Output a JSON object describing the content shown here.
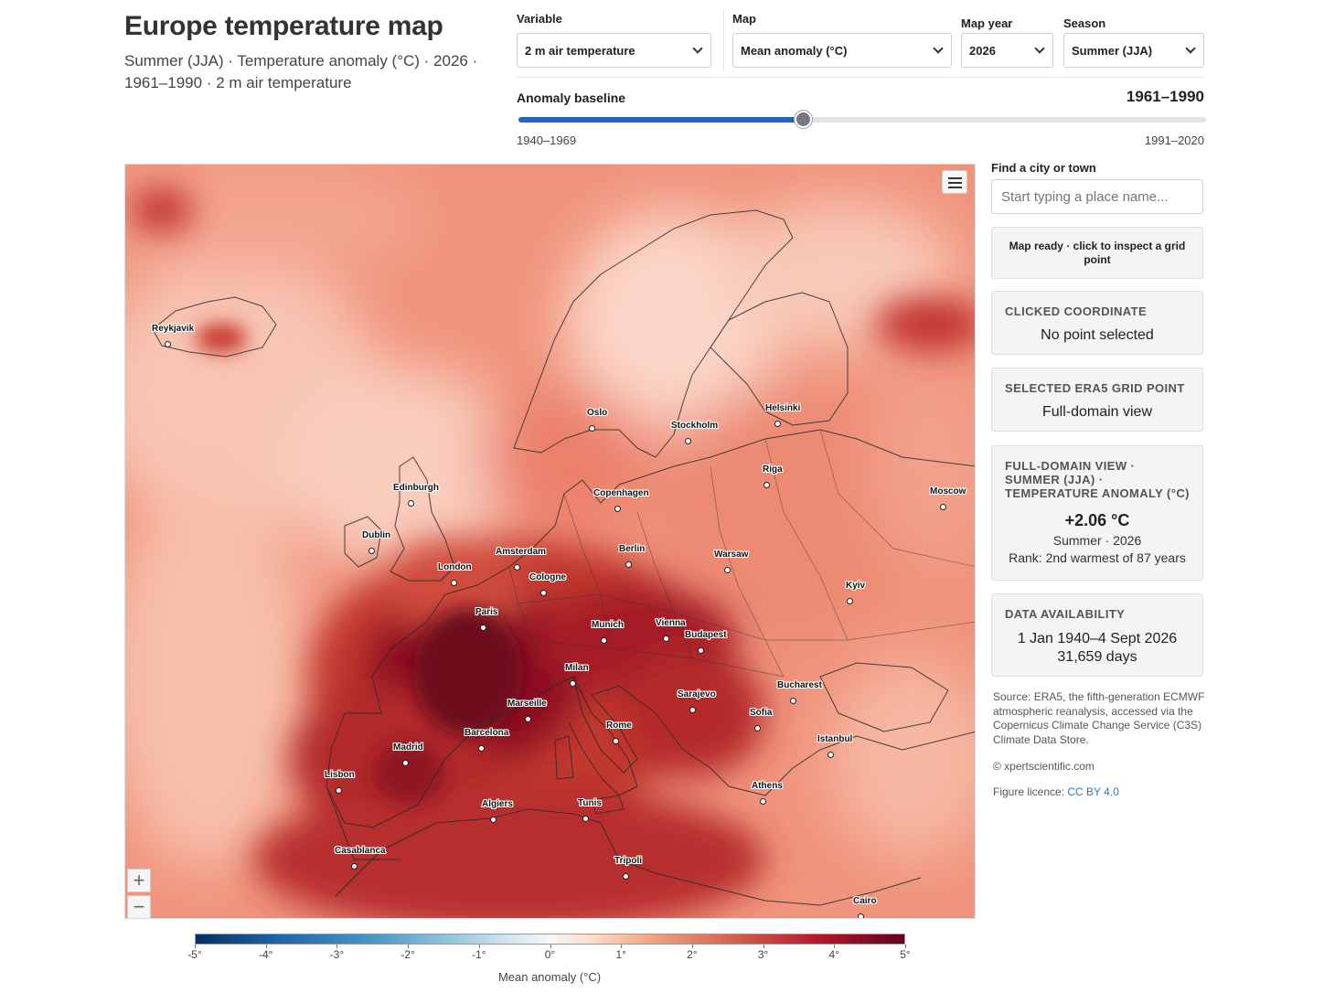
{
  "header": {
    "title": "Europe temperature map",
    "subtitle": "Summer (JJA) · Temperature anomaly (°C) · 2026 · 1961–1990 · 2 m air temperature"
  },
  "controls": {
    "variable": {
      "label": "Variable",
      "value": "2 m air temperature"
    },
    "map": {
      "label": "Map",
      "value": "Mean anomaly (°C)"
    },
    "year": {
      "label": "Map year",
      "value": "2026"
    },
    "season": {
      "label": "Season",
      "value": "Summer (JJA)"
    }
  },
  "baseline": {
    "label": "Anomaly baseline",
    "value": "1961–1990",
    "min_label": "1940–1969",
    "max_label": "1991–2020",
    "position_fraction": 0.413
  },
  "map": {
    "cities": [
      {
        "name": "Reykjavik"
      },
      {
        "name": "Oslo"
      },
      {
        "name": "Stockholm"
      },
      {
        "name": "Helsinki"
      },
      {
        "name": "Riga"
      },
      {
        "name": "Moscow"
      },
      {
        "name": "Edinburgh"
      },
      {
        "name": "Copenhagen"
      },
      {
        "name": "Dublin"
      },
      {
        "name": "Amsterdam"
      },
      {
        "name": "Berlin"
      },
      {
        "name": "Warsaw"
      },
      {
        "name": "London"
      },
      {
        "name": "Cologne"
      },
      {
        "name": "Kyiv"
      },
      {
        "name": "Paris"
      },
      {
        "name": "Munich"
      },
      {
        "name": "Vienna"
      },
      {
        "name": "Budapest"
      },
      {
        "name": "Milan"
      },
      {
        "name": "Bucharest"
      },
      {
        "name": "Sarajevo"
      },
      {
        "name": "Marseille"
      },
      {
        "name": "Sofia"
      },
      {
        "name": "Rome"
      },
      {
        "name": "Barcelona"
      },
      {
        "name": "Istanbul"
      },
      {
        "name": "Madrid"
      },
      {
        "name": "Lisbon"
      },
      {
        "name": "Athens"
      },
      {
        "name": "Algiers"
      },
      {
        "name": "Tunis"
      },
      {
        "name": "Casablanca"
      },
      {
        "name": "Tripoli"
      },
      {
        "name": "Cairo"
      }
    ],
    "zoom_in": "+",
    "zoom_out": "−",
    "colors": {
      "cold": "#053061",
      "neutral": "#f7f7f7",
      "warm": "#67001f",
      "map_fill": "#e87963"
    }
  },
  "legend": {
    "title": "Mean anomaly (°C)",
    "ticks": [
      "-5°",
      "-4°",
      "-3°",
      "-2°",
      "-1°",
      "0°",
      "1°",
      "2°",
      "3°",
      "4°",
      "5°"
    ]
  },
  "panel": {
    "find_label": "Find a city or town",
    "find_placeholder": "Start typing a place name...",
    "status": "Map ready · click to inspect a grid point",
    "clicked": {
      "head": "Clicked coordinate",
      "value": "No point selected"
    },
    "grid": {
      "head": "Selected ERA5 grid point",
      "value": "Full-domain view"
    },
    "summary": {
      "head": "Full-domain view · Summer (JJA) · Temperature anomaly (°C)",
      "value": "+2.06 °C",
      "period": "Summer · 2026",
      "rank": "Rank: 2nd warmest of 87 years"
    },
    "availability": {
      "head": "Data availability",
      "range": "1 Jan 1940–4 Sept 2026",
      "days": "31,659 days"
    },
    "source": "Source: ERA5, the fifth-generation ECMWF atmospheric reanalysis, accessed via the Copernicus Climate Change Service (C3S) Climate Data Store.",
    "copyright": "© xpertscientific.com",
    "licence_label": "Figure licence:",
    "licence_link": "CC BY 4.0"
  }
}
